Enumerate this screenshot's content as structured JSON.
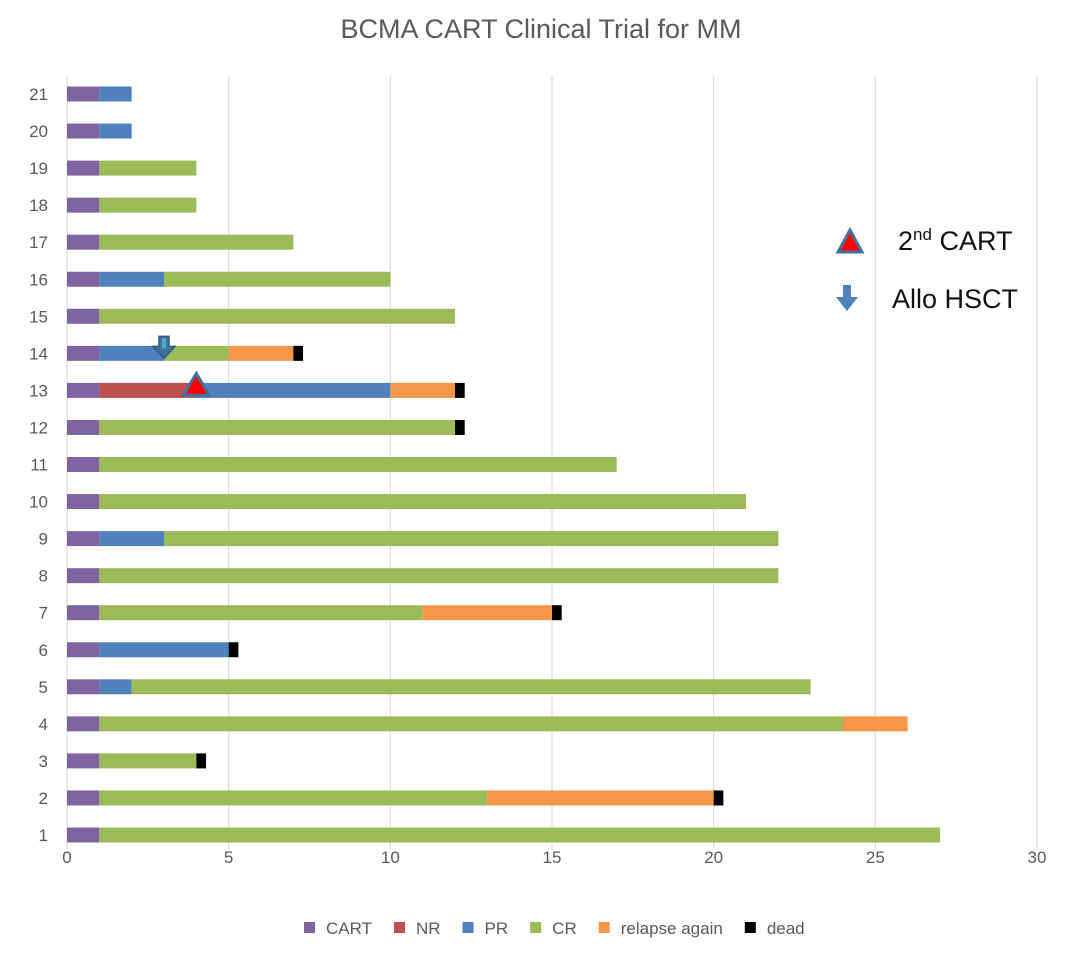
{
  "chart_data": {
    "type": "bar",
    "orientation": "horizontal",
    "stacked": true,
    "title": "BCMA CART Clinical Trial for MM",
    "xlabel": "",
    "ylabel": "",
    "xlim": [
      0,
      30
    ],
    "xticks": [
      0,
      5,
      10,
      15,
      20,
      25,
      30
    ],
    "grid": "vertical",
    "legend_position": "bottom",
    "categories": [
      "1",
      "2",
      "3",
      "4",
      "5",
      "6",
      "7",
      "8",
      "9",
      "10",
      "11",
      "12",
      "13",
      "14",
      "15",
      "16",
      "17",
      "18",
      "19",
      "20",
      "21"
    ],
    "series": [
      {
        "name": "CART",
        "color": "#8064a2",
        "values": [
          1,
          1,
          1,
          1,
          1,
          1,
          1,
          1,
          1,
          1,
          1,
          1,
          1,
          1,
          1,
          1,
          1,
          1,
          1,
          1,
          1
        ]
      },
      {
        "name": "NR",
        "color": "#c0504d",
        "values": [
          0,
          0,
          0,
          0,
          0,
          0,
          0,
          0,
          0,
          0,
          0,
          0,
          3,
          0,
          0,
          0,
          0,
          0,
          0,
          0,
          0
        ]
      },
      {
        "name": "PR",
        "color": "#4f81bd",
        "values": [
          0,
          0,
          0,
          0,
          1,
          4,
          0,
          0,
          2,
          0,
          0,
          0,
          6,
          2,
          0,
          2,
          0,
          0,
          0,
          1,
          1
        ]
      },
      {
        "name": "CR",
        "color": "#9bbb59",
        "values": [
          26,
          12,
          3,
          23,
          21,
          0,
          10,
          21,
          19,
          20,
          16,
          11,
          0,
          2,
          11,
          7,
          6,
          3,
          3,
          0,
          0
        ]
      },
      {
        "name": "relapse again",
        "color": "#f79646",
        "values": [
          0,
          7,
          0,
          2,
          0,
          0,
          4,
          0,
          0,
          0,
          0,
          0,
          2,
          2,
          0,
          0,
          0,
          0,
          0,
          0,
          0
        ]
      },
      {
        "name": "dead",
        "color": "#000000",
        "values": [
          0,
          0.3,
          0.3,
          0,
          0,
          0.3,
          0.3,
          0,
          0,
          0,
          0,
          0.3,
          0.3,
          0.3,
          0,
          0,
          0,
          0,
          0,
          0,
          0
        ]
      }
    ],
    "annotations": [
      {
        "type": "triangle",
        "label_main": "2",
        "label_sup": "nd",
        "label_rest": " CART",
        "category": "13",
        "x": 4,
        "color": "#ff0000"
      },
      {
        "type": "down-arrow",
        "label": "Allo HSCT",
        "category": "14",
        "x": 3,
        "color": "#4f81bd"
      }
    ]
  }
}
